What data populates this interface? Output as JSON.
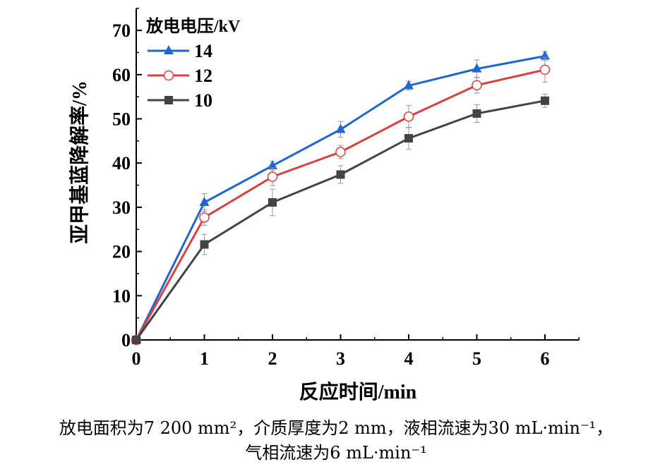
{
  "chart_data": {
    "type": "line",
    "xlabel": "反应时间/min",
    "ylabel": "亚甲基蓝降解率/%",
    "xlim": [
      0,
      6.5
    ],
    "ylim": [
      0,
      75
    ],
    "x": [
      0,
      1,
      2,
      3,
      4,
      5,
      6
    ],
    "xticks": [
      "0",
      "1",
      "2",
      "3",
      "4",
      "5",
      "6"
    ],
    "yticks": [
      "0",
      "10",
      "20",
      "30",
      "40",
      "50",
      "60",
      "70"
    ],
    "legend_title": "放电电压/kV",
    "legend_position": "top-left",
    "series": [
      {
        "name": "14",
        "marker": "triangle",
        "color": "#1f66d1",
        "values": [
          0,
          31.1,
          39.4,
          47.6,
          57.5,
          61.3,
          64.2
        ],
        "errors": [
          0,
          2.0,
          1.0,
          1.8,
          1.0,
          2.0,
          1.0
        ]
      },
      {
        "name": "12",
        "marker": "open-circle",
        "color": "#d94040",
        "values": [
          0,
          27.7,
          36.9,
          42.5,
          50.5,
          57.6,
          61.1
        ],
        "errors": [
          0,
          1.8,
          2.0,
          1.5,
          2.5,
          1.8,
          2.8
        ]
      },
      {
        "name": "10",
        "marker": "square",
        "color": "#444444",
        "values": [
          0,
          21.6,
          31.1,
          37.4,
          45.6,
          51.2,
          54.1
        ],
        "errors": [
          0,
          2.3,
          3.0,
          2.0,
          2.5,
          2.0,
          1.5
        ]
      }
    ]
  },
  "caption": {
    "line1": "放电面积为7 200 mm²，介质厚度为2 mm，液相流速为30 mL·min⁻¹，",
    "line2": "气相流速为6 mL·min⁻¹"
  }
}
